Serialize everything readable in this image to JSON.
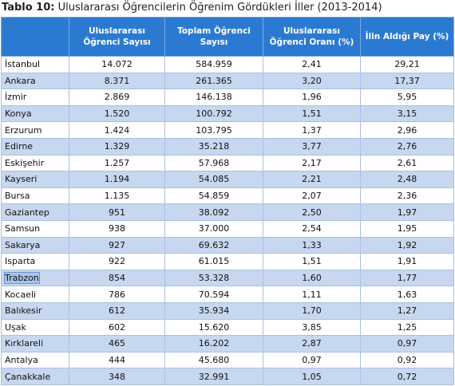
{
  "title": {
    "label": "Tablo 10:",
    "text": "Uluslararası Öğrencilerin Öğrenim Gördükleri İller (2013-2014)"
  },
  "table": {
    "headers": [
      "Uluslararası Öğrenci Sayısı",
      "Toplam Öğrenci Sayısı",
      "Uluslararası Öğrenci Oranı (%)",
      "İlin Aldığı Pay (%)"
    ],
    "rows": [
      [
        "İstanbul",
        "14.072",
        "584.959",
        "2,41",
        "29,21"
      ],
      [
        "Ankara",
        "8.371",
        "261.365",
        "3,20",
        "17,37"
      ],
      [
        "İzmir",
        "2.869",
        "146.138",
        "1,96",
        "5,95"
      ],
      [
        "Konya",
        "1.520",
        "100.792",
        "1,51",
        "3,15"
      ],
      [
        "Erzurum",
        "1.424",
        "103.795",
        "1,37",
        "2,96"
      ],
      [
        "Edirne",
        "1.329",
        "35.218",
        "3,77",
        "2,76"
      ],
      [
        "Eskişehir",
        "1.257",
        "57.968",
        "2,17",
        "2,61"
      ],
      [
        "Kayseri",
        "1.194",
        "54.085",
        "2,21",
        "2,48"
      ],
      [
        "Bursa",
        "1.135",
        "54.859",
        "2,07",
        "2,36"
      ],
      [
        "Gaziantep",
        "951",
        "38.092",
        "2,50",
        "1,97"
      ],
      [
        "Samsun",
        "938",
        "37.000",
        "2,54",
        "1,95"
      ],
      [
        "Sakarya",
        "927",
        "69.632",
        "1,33",
        "1,92"
      ],
      [
        "Isparta",
        "922",
        "61.015",
        "1,51",
        "1,91"
      ],
      [
        "Trabzon",
        "854",
        "53.328",
        "1,60",
        "1,77"
      ],
      [
        "Kocaeli",
        "786",
        "70.594",
        "1,11",
        "1,63"
      ],
      [
        "Balıkesir",
        "612",
        "35.934",
        "1,70",
        "1,27"
      ],
      [
        "Uşak",
        "602",
        "15.620",
        "3,85",
        "1,25"
      ],
      [
        "Kırklareli",
        "465",
        "16.202",
        "2,87",
        "0,97"
      ],
      [
        "Antalya",
        "444",
        "45.680",
        "0,97",
        "0,92"
      ],
      [
        "Çanakkale",
        "348",
        "32.991",
        "1,05",
        "0,72"
      ]
    ]
  }
}
